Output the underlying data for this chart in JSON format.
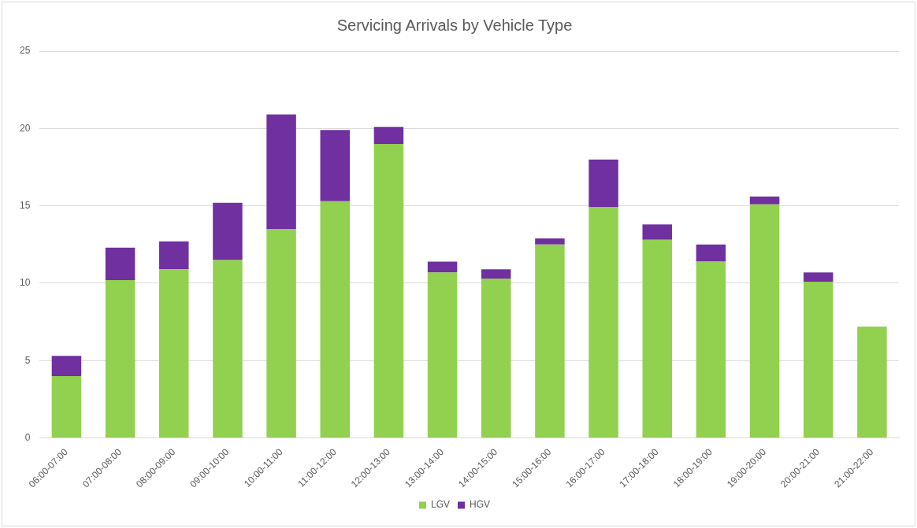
{
  "chart_data": {
    "type": "bar",
    "title": "Servicing Arrivals by Vehicle Type",
    "stacked": true,
    "grid": "y",
    "legend": "bottom",
    "categories": [
      "06:00-07:00",
      "07:00-08:00",
      "08:00-09:00",
      "09:00-10:00",
      "10:00-11:00",
      "11:00-12:00",
      "12:00-13:00",
      "13:00-14:00",
      "14:00-15:00",
      "15:00-16:00",
      "16:00-17:00",
      "17:00-18:00",
      "18:00-19:00",
      "19:00-20:00",
      "20:00-21:00",
      "21:00-22:00"
    ],
    "series": [
      {
        "name": "LGV",
        "color": "#92d050",
        "values": [
          4.0,
          10.2,
          10.9,
          11.5,
          13.5,
          15.3,
          19.0,
          10.7,
          10.3,
          12.5,
          14.9,
          12.8,
          11.4,
          15.1,
          10.1,
          7.2
        ]
      },
      {
        "name": "HGV",
        "color": "#7030a0",
        "values": [
          1.3,
          2.1,
          1.8,
          3.7,
          7.4,
          4.6,
          1.1,
          0.7,
          0.6,
          0.4,
          3.1,
          1.0,
          1.1,
          0.5,
          0.6,
          0
        ]
      }
    ],
    "ylim": [
      0,
      25
    ],
    "yticks": [
      0,
      5,
      10,
      15,
      20,
      25
    ]
  }
}
